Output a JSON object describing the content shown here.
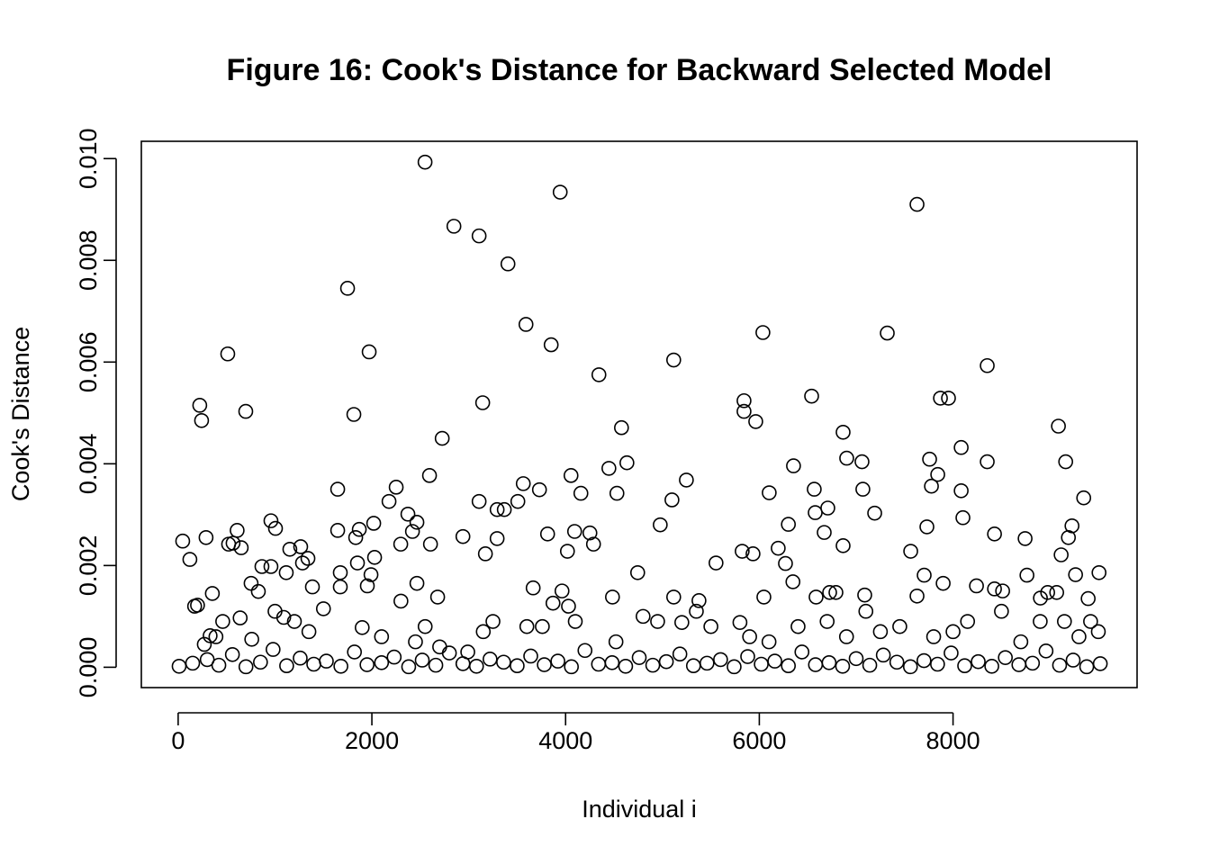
{
  "chart_data": {
    "type": "scatter",
    "title": "Figure 16: Cook's Distance for Backward Selected Model",
    "x_label": "Individual i",
    "y_label": "Cook's Distance",
    "x": [
      2549,
      3944,
      7628,
      2847,
      3107,
      3405,
      1749,
      7321,
      6037,
      3591,
      3851,
      512,
      1972,
      5116,
      8353,
      4344,
      6540,
      5842,
      7870,
      7953,
      223,
      3144,
      242,
      698,
      1814,
      5842,
      5963,
      4577,
      9088,
      6865,
      2726,
      8084,
      6902,
      7758,
      4633,
      7060,
      8353,
      9163,
      4447,
      6353,
      4056,
      2595,
      7842,
      5247,
      1647,
      2251,
      3563,
      3730,
      4530,
      6102,
      6567,
      7069,
      7777,
      8084,
      4158,
      9349,
      5098,
      3107,
      3507,
      2177,
      6707,
      3293,
      3367,
      7191,
      2372,
      6577,
      8102,
      958,
      2019,
      2465,
      4977,
      6300,
      7730,
      9228,
      609,
      1647,
      1870,
      1005,
      4093,
      2419,
      6670,
      288,
      1833,
      2940,
      3293,
      3814,
      4251,
      8428,
      8744,
      9191,
      47,
      567,
      521,
      2605,
      2298,
      4288,
      651,
      6865,
      4019,
      5823,
      7563,
      1153,
      1265,
      2028,
      6195,
      3172,
      5935,
      9116,
      121,
      5553,
      1851,
      1284,
      1340,
      6270,
      9507,
      865,
      958,
      1991,
      4744,
      1674,
      1116,
      7702,
      8763,
      9265,
      1953,
      2465,
      3665,
      6347,
      7898,
      8242,
      8428,
      8512,
      1386,
      1674,
      753,
      353,
      3963,
      6726,
      6791,
      8977,
      9070,
      828,
      2679,
      4484,
      6586,
      7088,
      7628,
      8902,
      6047,
      5116,
      5377,
      9395,
      3870,
      200,
      170,
      270,
      330,
      390,
      460,
      640,
      760,
      1000,
      1090,
      1200,
      1350,
      1500,
      1900,
      2100,
      2300,
      2450,
      2550,
      2700,
      2990,
      3150,
      3250,
      3600,
      3760,
      4030,
      4100,
      4520,
      4800,
      4950,
      5200,
      5350,
      5500,
      5800,
      5900,
      6100,
      6400,
      6700,
      6900,
      7100,
      7250,
      7450,
      7800,
      8000,
      8150,
      8500,
      8700,
      8900,
      9150,
      9300,
      9420,
      9500,
      10,
      150,
      300,
      420,
      560,
      700,
      850,
      980,
      1120,
      1260,
      1400,
      1530,
      1680,
      1820,
      1950,
      2100,
      2230,
      2380,
      2520,
      2660,
      2800,
      2940,
      3080,
      3220,
      3360,
      3500,
      3640,
      3780,
      3920,
      4060,
      4200,
      4340,
      4480,
      4620,
      4760,
      4900,
      5040,
      5180,
      5320,
      5460,
      5600,
      5740,
      5880,
      6020,
      6160,
      6300,
      6440,
      6580,
      6720,
      6860,
      7000,
      7140,
      7280,
      7420,
      7560,
      7700,
      7840,
      7980,
      8120,
      8260,
      8400,
      8540,
      8680,
      8820,
      8960,
      9100,
      9240,
      9380,
      9520
    ],
    "values": [
      0.00993,
      0.00934,
      0.0091,
      0.00867,
      0.00848,
      0.00793,
      0.00745,
      0.00657,
      0.00658,
      0.00674,
      0.00634,
      0.00616,
      0.0062,
      0.00604,
      0.00593,
      0.00575,
      0.00533,
      0.00524,
      0.00529,
      0.00529,
      0.00515,
      0.0052,
      0.00485,
      0.00503,
      0.00497,
      0.00503,
      0.00483,
      0.00471,
      0.00474,
      0.00462,
      0.0045,
      0.00432,
      0.00411,
      0.00409,
      0.00402,
      0.00404,
      0.00404,
      0.00404,
      0.00391,
      0.00396,
      0.00377,
      0.00377,
      0.00379,
      0.00368,
      0.0035,
      0.00354,
      0.00361,
      0.00349,
      0.00342,
      0.00343,
      0.0035,
      0.0035,
      0.00356,
      0.00347,
      0.00342,
      0.00333,
      0.00329,
      0.00326,
      0.00326,
      0.00326,
      0.00313,
      0.0031,
      0.0031,
      0.00303,
      0.00301,
      0.00304,
      0.00294,
      0.00288,
      0.00283,
      0.00285,
      0.0028,
      0.00281,
      0.00276,
      0.00278,
      0.00269,
      0.00269,
      0.00271,
      0.00273,
      0.00267,
      0.00267,
      0.00265,
      0.00255,
      0.00255,
      0.00257,
      0.00253,
      0.00262,
      0.00264,
      0.00262,
      0.00253,
      0.00255,
      0.00248,
      0.00244,
      0.00242,
      0.00242,
      0.00242,
      0.00242,
      0.00235,
      0.00239,
      0.00228,
      0.00228,
      0.00228,
      0.00232,
      0.00237,
      0.00216,
      0.00234,
      0.00223,
      0.00223,
      0.00221,
      0.00212,
      0.00205,
      0.00205,
      0.00205,
      0.00214,
      0.00204,
      0.00186,
      0.00198,
      0.00198,
      0.00182,
      0.00186,
      0.00186,
      0.00186,
      0.00181,
      0.00181,
      0.00182,
      0.0016,
      0.00165,
      0.00156,
      0.00168,
      0.00165,
      0.0016,
      0.00154,
      0.0015,
      0.00158,
      0.00158,
      0.00165,
      0.00145,
      0.0015,
      0.00147,
      0.00147,
      0.00147,
      0.00147,
      0.00149,
      0.00138,
      0.00138,
      0.00138,
      0.00142,
      0.0014,
      0.00136,
      0.00138,
      0.00138,
      0.00131,
      0.00135,
      0.00126,
      0.00122,
      0.0012,
      0.00045,
      0.00062,
      0.0006,
      0.0009,
      0.00097,
      0.00055,
      0.0011,
      0.00098,
      0.0009,
      0.0007,
      0.00115,
      0.00078,
      0.0006,
      0.0013,
      0.0005,
      0.0008,
      0.0004,
      0.0003,
      0.0007,
      0.0009,
      0.0008,
      0.0008,
      0.0012,
      0.0009,
      0.0005,
      0.001,
      0.0009,
      0.00088,
      0.0011,
      0.0008,
      0.00088,
      0.0006,
      0.0005,
      0.0008,
      0.0009,
      0.0006,
      0.0011,
      0.0007,
      0.0008,
      0.0006,
      0.0007,
      0.0009,
      0.0011,
      0.0005,
      0.0009,
      0.0009,
      0.0006,
      0.0009,
      0.0007,
      2e-05,
      8e-05,
      0.00015,
      4e-05,
      0.00025,
      1e-05,
      0.0001,
      0.00035,
      3e-05,
      0.00018,
      6e-05,
      0.00012,
      2e-05,
      0.0003,
      5e-05,
      9e-05,
      0.0002,
      1e-05,
      0.00014,
      4e-05,
      0.00028,
      7e-05,
      2e-05,
      0.00016,
      0.0001,
      3e-05,
      0.00022,
      5e-05,
      0.00012,
      1e-05,
      0.00033,
      6e-05,
      9e-05,
      2e-05,
      0.00019,
      4e-05,
      0.00011,
      0.00026,
      3e-05,
      8e-05,
      0.00015,
      1e-05,
      0.00021,
      6e-05,
      0.00012,
      3e-05,
      0.0003,
      5e-05,
      9e-05,
      2e-05,
      0.00017,
      4e-05,
      0.00024,
      0.0001,
      1e-05,
      0.00013,
      6e-05,
      0.00028,
      3e-05,
      0.00011,
      2e-05,
      0.00019,
      5e-05,
      8e-05,
      0.00032,
      4e-05,
      0.00014,
      1e-05,
      7e-05
    ],
    "color": "#000000",
    "xlim": [
      -380,
      9900
    ],
    "ylim": [
      -0.0004,
      0.01034
    ],
    "xticks": [
      0,
      2000,
      4000,
      6000,
      8000
    ],
    "yticks": [
      {
        "value": 0,
        "label": "0.000"
      },
      0.002,
      0.004,
      0.006,
      0.008,
      {
        "value": 0.01,
        "label": "0.010"
      }
    ],
    "grid": false
  }
}
